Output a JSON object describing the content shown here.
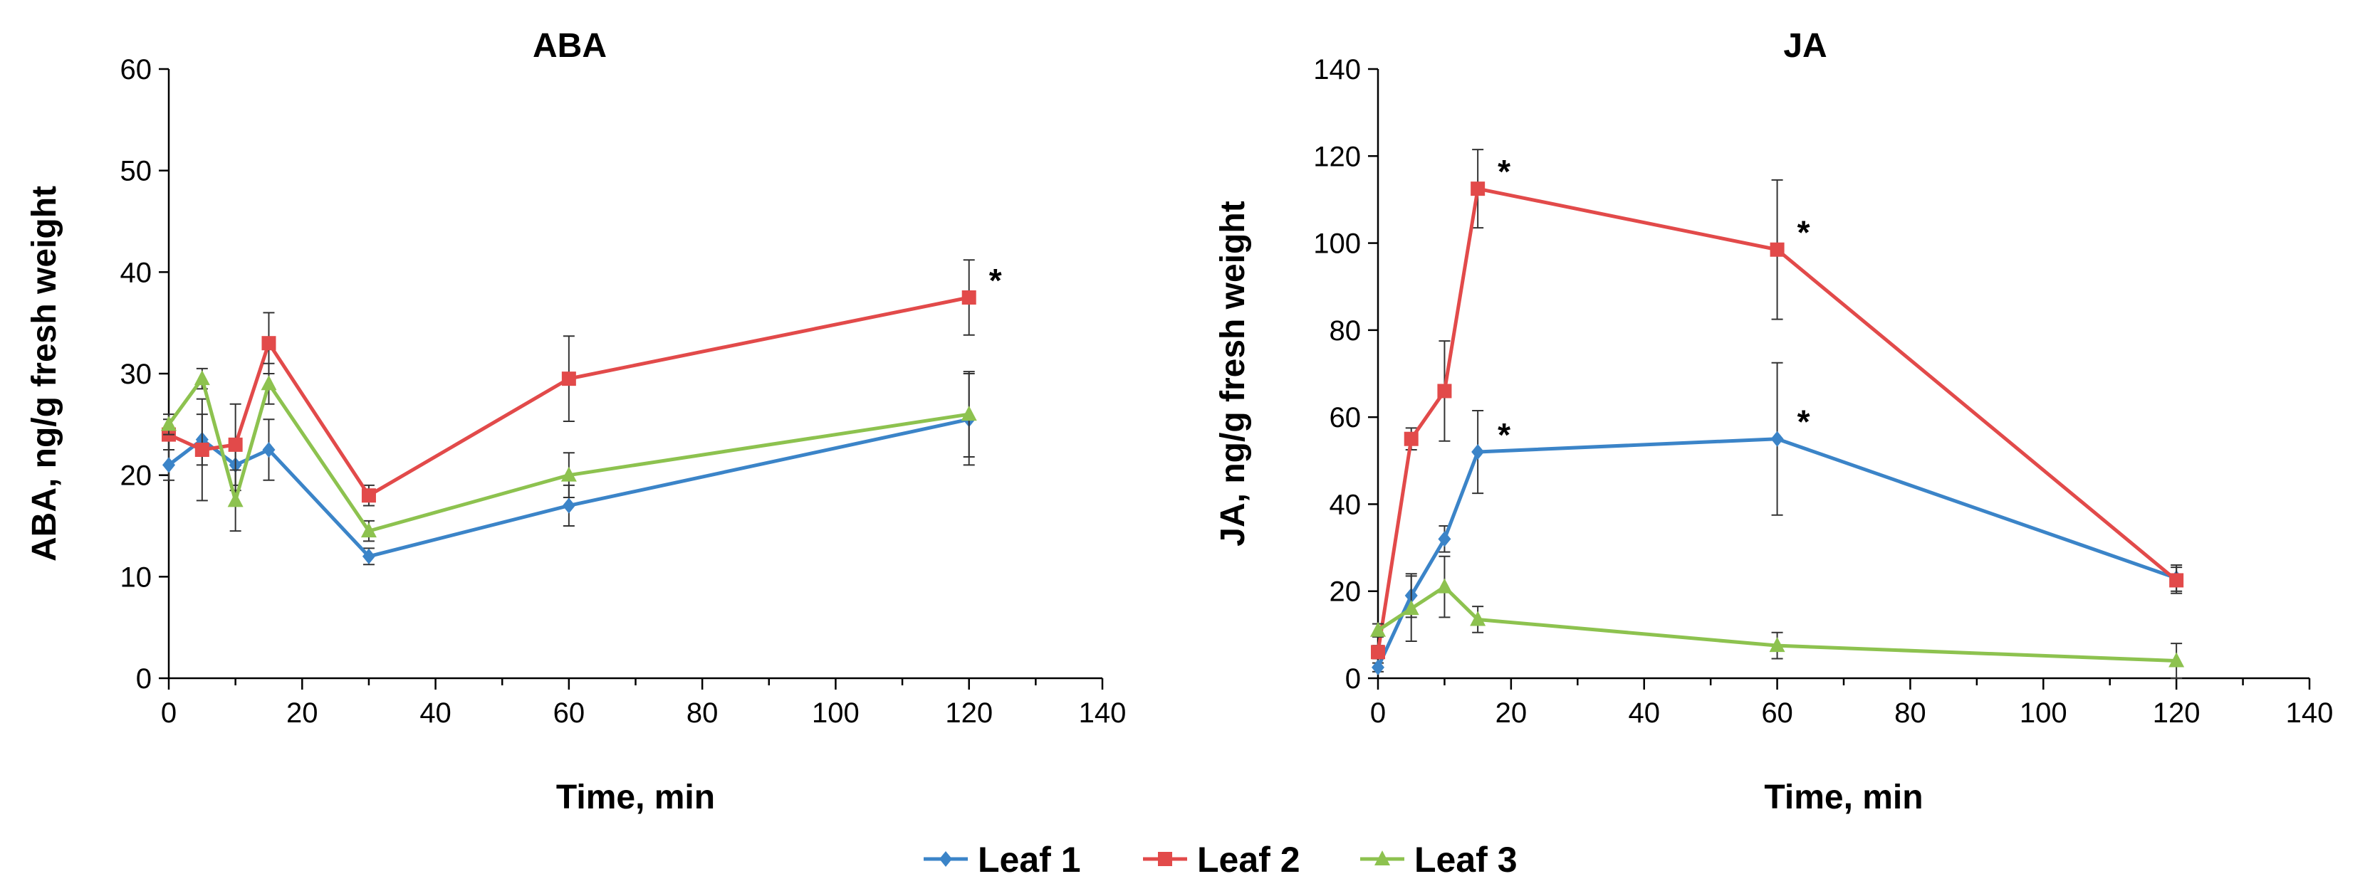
{
  "chart_data": [
    {
      "type": "line",
      "title": "ABA",
      "xlabel": "Time, min",
      "ylabel": "ABA, ng/g fresh weight",
      "xlim": [
        0,
        140
      ],
      "ylim": [
        0,
        60
      ],
      "xticks": [
        0,
        20,
        40,
        60,
        80,
        100,
        120,
        140
      ],
      "yticks": [
        0,
        10,
        20,
        30,
        40,
        50,
        60
      ],
      "x": [
        0,
        5,
        10,
        15,
        30,
        60,
        120
      ],
      "series": [
        {
          "name": "Leaf 1",
          "values": [
            21,
            23.5,
            21,
            22.5,
            12,
            17,
            25.5
          ],
          "errors": [
            1.5,
            2.5,
            2.5,
            3,
            0.8,
            2,
            4.5
          ]
        },
        {
          "name": "Leaf 2",
          "values": [
            24,
            22.5,
            23,
            33,
            18,
            29.5,
            37.5
          ],
          "errors": [
            1.5,
            5,
            4,
            3,
            1,
            4.2,
            3.7
          ]
        },
        {
          "name": "Leaf 3",
          "values": [
            25,
            29.5,
            17.5,
            29,
            14.5,
            20,
            26
          ],
          "errors": [
            1,
            1,
            3,
            2,
            1,
            2.2,
            4.2
          ]
        }
      ],
      "annotations": [
        {
          "text": "*",
          "x": 120,
          "series": "Leaf 2"
        }
      ]
    },
    {
      "type": "line",
      "title": "JA",
      "xlabel": "Time, min",
      "ylabel": "JA, ng/g fresh weight",
      "xlim": [
        0,
        140
      ],
      "ylim": [
        0,
        140
      ],
      "xticks": [
        0,
        20,
        40,
        60,
        80,
        100,
        120,
        140
      ],
      "yticks": [
        0,
        20,
        40,
        60,
        80,
        100,
        120,
        140
      ],
      "x": [
        0,
        5,
        10,
        15,
        60,
        120
      ],
      "series": [
        {
          "name": "Leaf 1",
          "values": [
            2.5,
            19,
            32,
            52,
            55,
            23
          ],
          "errors": [
            1,
            5,
            3,
            9.5,
            17.5,
            3
          ]
        },
        {
          "name": "Leaf 2",
          "values": [
            6,
            55,
            66,
            112.5,
            98.5,
            22.5
          ],
          "errors": [
            1.5,
            2.5,
            11.5,
            9,
            16,
            3
          ]
        },
        {
          "name": "Leaf 3",
          "values": [
            11,
            16,
            21,
            13.5,
            7.5,
            4
          ],
          "errors": [
            1.5,
            7.5,
            7,
            3,
            3,
            4
          ]
        }
      ],
      "annotations": [
        {
          "text": "*",
          "x": 15,
          "series": "Leaf 2"
        },
        {
          "text": "*",
          "x": 60,
          "series": "Leaf 2"
        },
        {
          "text": "*",
          "x": 15,
          "series": "Leaf 1"
        },
        {
          "text": "*",
          "x": 60,
          "series": "Leaf 1"
        }
      ]
    }
  ],
  "legend": {
    "placement": "bottom-center",
    "items": [
      {
        "name": "Leaf 1",
        "color": "#3B84C8",
        "marker": "diamond"
      },
      {
        "name": "Leaf 2",
        "color": "#E24A4A",
        "marker": "square"
      },
      {
        "name": "Leaf 3",
        "color": "#8DC24F",
        "marker": "triangle"
      }
    ]
  },
  "colors": {
    "axis": "#000000",
    "errorbar": "#333333"
  }
}
